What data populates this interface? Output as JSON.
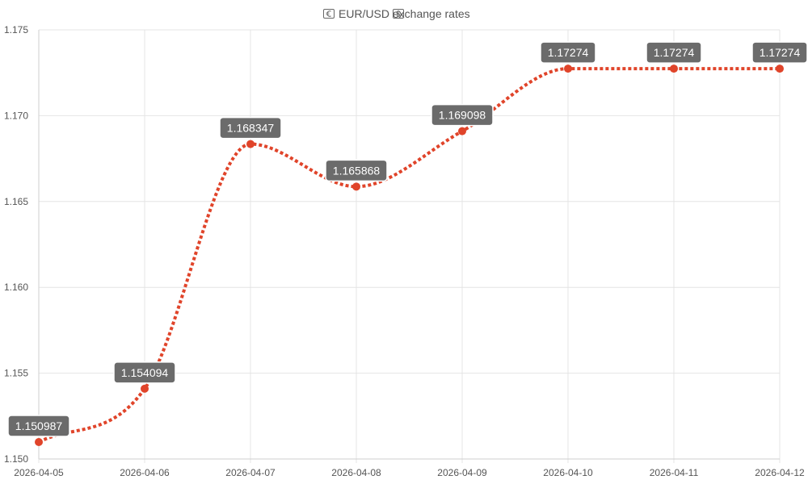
{
  "chart_data": {
    "type": "line",
    "title": "EUR/USD exchange rates",
    "title_icons": [
      "euro-banknote-icon",
      "dollar-banknote-icon"
    ],
    "categories": [
      "2026-04-05",
      "2026-04-06",
      "2026-04-07",
      "2026-04-08",
      "2026-04-09",
      "2026-04-10",
      "2026-04-11",
      "2026-04-12"
    ],
    "series": [
      {
        "values": [
          1.150987,
          1.154094,
          1.168347,
          1.165868,
          1.169098,
          1.17274,
          1.17274,
          1.17274
        ],
        "data_labels": [
          "1.150987",
          "1.154094",
          "1.168347",
          "1.165868",
          "1.169098",
          "1.17274",
          "1.17274",
          "1.17274"
        ],
        "color": "#e0442a",
        "line_style": "dotted",
        "smooth": true
      }
    ],
    "ylim": [
      1.15,
      1.175
    ],
    "y_ticks": [
      "1.150",
      "1.155",
      "1.160",
      "1.165",
      "1.170",
      "1.175"
    ],
    "xlabel": "",
    "ylabel": "",
    "grid": true,
    "legend": "none",
    "colors": {
      "line": "#e0442a",
      "label_bg": "#6b6b6b",
      "label_text": "#ffffff",
      "grid": "#e4e4e4",
      "text": "#555555"
    }
  }
}
